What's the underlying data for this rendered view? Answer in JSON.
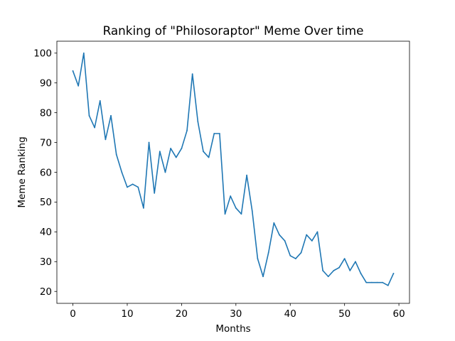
{
  "chart_data": {
    "type": "line",
    "title": "Ranking of \"Philosoraptor\" Meme Over time",
    "xlabel": "Months",
    "ylabel": "Meme Ranking",
    "xlim": [
      -2.95,
      61.95
    ],
    "ylim": [
      16,
      104
    ],
    "xticks": [
      0,
      10,
      20,
      30,
      40,
      50,
      60
    ],
    "yticks": [
      20,
      30,
      40,
      50,
      60,
      70,
      80,
      90,
      100
    ],
    "grid": false,
    "line_color": "#1f77b4",
    "series": [
      {
        "x": [
          0,
          1,
          2,
          3,
          4,
          5,
          6,
          7,
          8,
          9,
          10,
          11,
          12,
          13,
          14,
          15,
          16,
          17,
          18,
          19,
          20,
          21,
          22,
          23,
          24,
          25,
          26,
          27,
          28,
          29,
          30,
          31,
          32,
          33,
          34,
          35,
          36,
          37,
          38,
          39,
          40,
          41,
          42,
          43,
          44,
          45,
          46,
          47,
          48,
          49,
          50,
          51,
          52,
          53,
          54,
          55,
          56,
          57,
          58,
          59
        ],
        "values": [
          94,
          89,
          100,
          79,
          75,
          84,
          71,
          79,
          66,
          60,
          55,
          56,
          55,
          48,
          70,
          53,
          67,
          60,
          68,
          65,
          68,
          74,
          93,
          77,
          67,
          65,
          73,
          73,
          46,
          52,
          48,
          46,
          59,
          47,
          31,
          25,
          33,
          43,
          39,
          37,
          32,
          31,
          33,
          39,
          37,
          40,
          27,
          25,
          27,
          28,
          31,
          27,
          30,
          26,
          23,
          23,
          23,
          23,
          22,
          26
        ]
      }
    ]
  }
}
